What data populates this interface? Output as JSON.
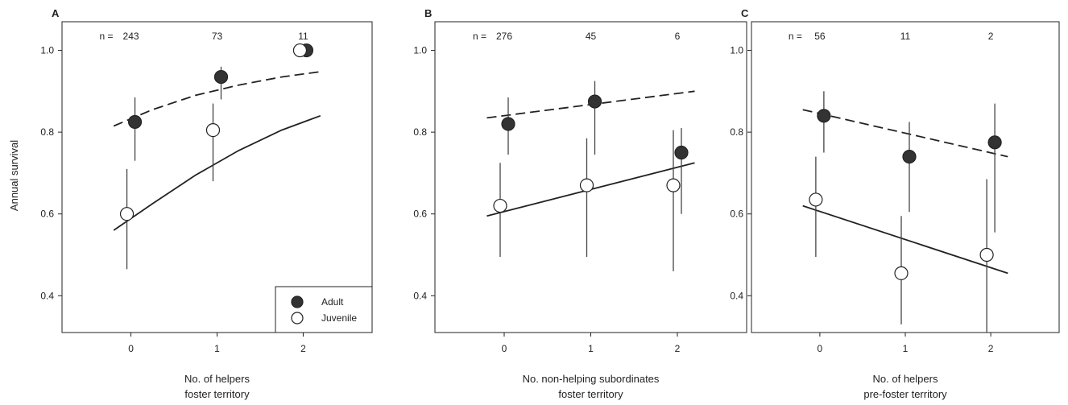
{
  "ylabel": "Annual survival",
  "legend": {
    "position": "bottom-right of panel A",
    "entries": [
      {
        "label": "Adult",
        "marker": "filled-circle",
        "color": "#333333"
      },
      {
        "label": "Juvenile",
        "marker": "open-circle",
        "color": "#ffffff"
      }
    ]
  },
  "chart_data": [
    {
      "type": "scatter",
      "panel": "A",
      "xlabel_lines": [
        "No. of helpers",
        "foster territory"
      ],
      "x_ticks": [
        "0",
        "1",
        "2"
      ],
      "y_ticks": [
        "0.4",
        "0.6",
        "0.8",
        "1.0"
      ],
      "xlim": [
        -0.8,
        2.8
      ],
      "ylim": [
        0.31,
        1.07
      ],
      "n_prefix": "n =",
      "n_values": [
        "243",
        "73",
        "11"
      ],
      "series": [
        {
          "name": "Adult",
          "marker": "filled",
          "points": [
            {
              "x": 0,
              "y": 0.825,
              "lo": 0.73,
              "hi": 0.885
            },
            {
              "x": 1,
              "y": 0.935,
              "lo": 0.88,
              "hi": 0.96
            },
            {
              "x": 2,
              "y": 1.0,
              "lo": null,
              "hi": null
            }
          ],
          "fit": {
            "style": "dashed",
            "points": [
              [
                -0.2,
                0.815
              ],
              [
                0.25,
                0.855
              ],
              [
                0.75,
                0.89
              ],
              [
                1.25,
                0.915
              ],
              [
                1.75,
                0.935
              ],
              [
                2.2,
                0.948
              ]
            ]
          }
        },
        {
          "name": "Juvenile",
          "marker": "open",
          "points": [
            {
              "x": 0,
              "y": 0.6,
              "lo": 0.465,
              "hi": 0.71
            },
            {
              "x": 1,
              "y": 0.805,
              "lo": 0.68,
              "hi": 0.87
            },
            {
              "x": 2,
              "y": 1.0,
              "lo": null,
              "hi": null
            }
          ],
          "fit": {
            "style": "solid",
            "points": [
              [
                -0.2,
                0.56
              ],
              [
                0.25,
                0.625
              ],
              [
                0.75,
                0.695
              ],
              [
                1.25,
                0.755
              ],
              [
                1.75,
                0.805
              ],
              [
                2.2,
                0.84
              ]
            ]
          }
        }
      ]
    },
    {
      "type": "scatter",
      "panel": "B",
      "xlabel_lines": [
        "No. non-helping subordinates",
        "foster territory"
      ],
      "x_ticks": [
        "0",
        "1",
        "2"
      ],
      "y_ticks": [
        "0.4",
        "0.6",
        "0.8",
        "1.0"
      ],
      "xlim": [
        -0.8,
        2.8
      ],
      "ylim": [
        0.31,
        1.07
      ],
      "n_prefix": "n =",
      "n_values": [
        "276",
        "45",
        "6"
      ],
      "series": [
        {
          "name": "Adult",
          "marker": "filled",
          "points": [
            {
              "x": 0,
              "y": 0.82,
              "lo": 0.745,
              "hi": 0.885
            },
            {
              "x": 1,
              "y": 0.875,
              "lo": 0.745,
              "hi": 0.925
            },
            {
              "x": 2,
              "y": 0.75,
              "lo": 0.6,
              "hi": 0.81
            }
          ],
          "fit": {
            "style": "dashed",
            "points": [
              [
                -0.2,
                0.835
              ],
              [
                2.2,
                0.9
              ]
            ]
          }
        },
        {
          "name": "Juvenile",
          "marker": "open",
          "points": [
            {
              "x": 0,
              "y": 0.62,
              "lo": 0.495,
              "hi": 0.725
            },
            {
              "x": 1,
              "y": 0.67,
              "lo": 0.495,
              "hi": 0.785
            },
            {
              "x": 2,
              "y": 0.67,
              "lo": 0.46,
              "hi": 0.805
            }
          ],
          "fit": {
            "style": "solid",
            "points": [
              [
                -0.2,
                0.595
              ],
              [
                2.2,
                0.725
              ]
            ]
          }
        }
      ]
    },
    {
      "type": "scatter",
      "panel": "C",
      "xlabel_lines": [
        "No. of helpers",
        "pre-foster territory"
      ],
      "x_ticks": [
        "0",
        "1",
        "2"
      ],
      "y_ticks": [
        "0.4",
        "0.6",
        "0.8",
        "1.0"
      ],
      "xlim": [
        -0.8,
        2.8
      ],
      "ylim": [
        0.31,
        1.07
      ],
      "n_prefix": "n =",
      "n_values": [
        "56",
        "11",
        "2"
      ],
      "series": [
        {
          "name": "Adult",
          "marker": "filled",
          "points": [
            {
              "x": 0,
              "y": 0.84,
              "lo": 0.75,
              "hi": 0.9
            },
            {
              "x": 1,
              "y": 0.74,
              "lo": 0.605,
              "hi": 0.825
            },
            {
              "x": 2,
              "y": 0.775,
              "lo": 0.555,
              "hi": 0.87
            }
          ],
          "fit": {
            "style": "dashed",
            "points": [
              [
                -0.2,
                0.855
              ],
              [
                2.2,
                0.74
              ]
            ]
          }
        },
        {
          "name": "Juvenile",
          "marker": "open",
          "points": [
            {
              "x": 0,
              "y": 0.635,
              "lo": 0.495,
              "hi": 0.74
            },
            {
              "x": 1,
              "y": 0.455,
              "lo": 0.33,
              "hi": 0.595
            },
            {
              "x": 2,
              "y": 0.5,
              "lo": 0.31,
              "hi": 0.685
            }
          ],
          "fit": {
            "style": "solid",
            "points": [
              [
                -0.2,
                0.62
              ],
              [
                2.2,
                0.455
              ]
            ]
          }
        }
      ]
    }
  ]
}
